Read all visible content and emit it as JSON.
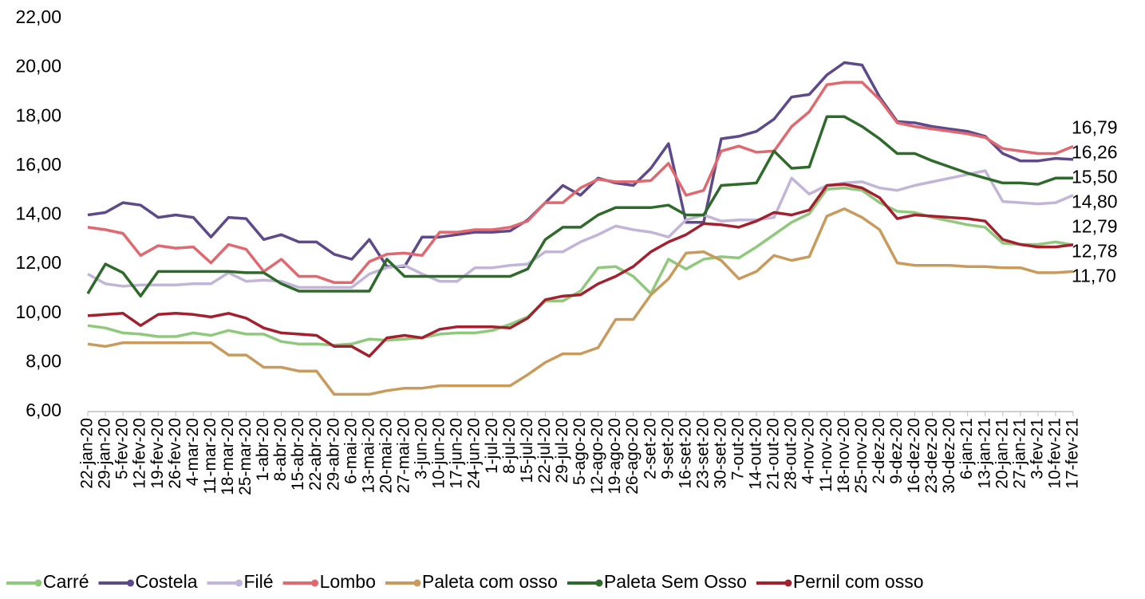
{
  "chart_data": {
    "type": "line",
    "categories": [
      "22-jan-20",
      "29-jan-20",
      "5-fev-20",
      "12-fev-20",
      "19-fev-20",
      "26-fev-20",
      "4-mar-20",
      "11-mar-20",
      "18-mar-20",
      "25-mar-20",
      "1-abr-20",
      "8-abr-20",
      "15-abr-20",
      "22-abr-20",
      "29-abr-20",
      "6-mai-20",
      "13-mai-20",
      "20-mai-20",
      "27-mai-20",
      "3-jun-20",
      "10-jun-20",
      "17-jun-20",
      "24-jun-20",
      "1-jul-20",
      "8-jul-20",
      "15-jul-20",
      "22-jul-20",
      "29-jul-20",
      "5-ago-20",
      "12-ago-20",
      "19-ago-20",
      "26-ago-20",
      "2-set-20",
      "9-set-20",
      "16-set-20",
      "23-set-20",
      "30-set-20",
      "7-out-20",
      "14-out-20",
      "21-out-20",
      "28-out-20",
      "4-nov-20",
      "11-nov-20",
      "18-nov-20",
      "25-nov-20",
      "2-dez-20",
      "9-dez-20",
      "16-dez-20",
      "23-dez-20",
      "30-dez-20",
      "6-jan-21",
      "13-jan-21",
      "20-jan-21",
      "27-jan-21",
      "3-fev-21",
      "10-fev-21",
      "17-fev-21"
    ],
    "series": [
      {
        "name": "Carré",
        "color": "#8fc97c",
        "end_label": "12,78",
        "values": [
          9.5,
          9.4,
          9.2,
          9.15,
          9.05,
          9.05,
          9.2,
          9.1,
          9.3,
          9.15,
          9.15,
          8.85,
          8.75,
          8.75,
          8.7,
          8.75,
          8.95,
          8.9,
          8.95,
          9.0,
          9.15,
          9.2,
          9.2,
          9.3,
          9.55,
          9.85,
          10.5,
          10.5,
          10.9,
          11.85,
          11.9,
          11.5,
          10.8,
          12.2,
          11.8,
          12.2,
          12.3,
          12.25,
          12.7,
          13.2,
          13.7,
          14.05,
          15.05,
          15.1,
          15.0,
          14.5,
          14.15,
          14.1,
          13.9,
          13.75,
          13.6,
          13.5,
          12.85,
          12.8,
          12.8,
          12.9,
          12.78
        ]
      },
      {
        "name": "Costela",
        "color": "#5e4a8b",
        "end_label": "16,26",
        "values": [
          14.0,
          14.1,
          14.5,
          14.4,
          13.9,
          14.0,
          13.9,
          13.1,
          13.9,
          13.85,
          13.0,
          13.2,
          12.9,
          12.9,
          12.4,
          12.2,
          13.0,
          11.9,
          11.9,
          13.1,
          13.1,
          13.2,
          13.3,
          13.3,
          13.35,
          13.8,
          14.5,
          15.2,
          14.8,
          15.5,
          15.3,
          15.2,
          15.9,
          16.9,
          13.7,
          13.7,
          17.1,
          17.2,
          17.4,
          17.9,
          18.8,
          18.9,
          19.7,
          20.2,
          20.1,
          18.8,
          17.8,
          17.75,
          17.6,
          17.5,
          17.4,
          17.2,
          16.5,
          16.2,
          16.2,
          16.3,
          16.26
        ]
      },
      {
        "name": "Filé",
        "color": "#c3b5d9",
        "end_label": "14,80",
        "values": [
          11.6,
          11.2,
          11.1,
          11.15,
          11.15,
          11.15,
          11.2,
          11.2,
          11.65,
          11.3,
          11.35,
          11.3,
          11.05,
          11.05,
          11.05,
          11.05,
          11.6,
          11.85,
          11.95,
          11.6,
          11.3,
          11.3,
          11.85,
          11.85,
          11.95,
          12.0,
          12.5,
          12.5,
          12.9,
          13.2,
          13.55,
          13.4,
          13.3,
          13.1,
          13.8,
          14.0,
          13.75,
          13.8,
          13.8,
          13.9,
          15.5,
          14.85,
          15.2,
          15.3,
          15.35,
          15.1,
          15.0,
          15.2,
          15.35,
          15.5,
          15.65,
          15.8,
          14.55,
          14.5,
          14.45,
          14.5,
          14.8
        ]
      },
      {
        "name": "Lombo",
        "color": "#e0686e",
        "end_label": "16,79",
        "values": [
          13.5,
          13.4,
          13.25,
          12.35,
          12.75,
          12.65,
          12.7,
          12.05,
          12.8,
          12.6,
          11.7,
          12.2,
          11.5,
          11.5,
          11.25,
          11.25,
          12.1,
          12.4,
          12.45,
          12.35,
          13.3,
          13.3,
          13.4,
          13.4,
          13.5,
          13.75,
          14.5,
          14.5,
          15.1,
          15.45,
          15.35,
          15.35,
          15.4,
          16.1,
          14.8,
          15.0,
          16.6,
          16.8,
          16.55,
          16.6,
          17.6,
          18.2,
          19.3,
          19.4,
          19.4,
          18.7,
          17.75,
          17.6,
          17.5,
          17.4,
          17.3,
          17.15,
          16.7,
          16.6,
          16.5,
          16.5,
          16.79
        ]
      },
      {
        "name": "Paleta com osso",
        "color": "#c99a5b",
        "end_label": "11,70",
        "values": [
          8.75,
          8.65,
          8.8,
          8.8,
          8.8,
          8.8,
          8.8,
          8.8,
          8.3,
          8.3,
          7.8,
          7.8,
          7.65,
          7.65,
          6.7,
          6.7,
          6.7,
          6.85,
          6.95,
          6.95,
          7.05,
          7.05,
          7.05,
          7.05,
          7.05,
          7.5,
          8.0,
          8.35,
          8.35,
          8.6,
          9.75,
          9.75,
          10.75,
          11.4,
          12.45,
          12.5,
          12.15,
          11.4,
          11.7,
          12.35,
          12.15,
          12.3,
          13.95,
          14.25,
          13.9,
          13.4,
          12.05,
          11.95,
          11.95,
          11.95,
          11.9,
          11.9,
          11.85,
          11.85,
          11.65,
          11.65,
          11.7
        ]
      },
      {
        "name": "Paleta Sem Osso",
        "color": "#2e6b2b",
        "end_label": "15,50",
        "values": [
          10.8,
          12.0,
          11.65,
          10.7,
          11.7,
          11.7,
          11.7,
          11.7,
          11.7,
          11.65,
          11.65,
          11.2,
          10.9,
          10.9,
          10.9,
          10.9,
          10.9,
          12.2,
          11.5,
          11.5,
          11.5,
          11.5,
          11.5,
          11.5,
          11.5,
          11.8,
          13.0,
          13.5,
          13.5,
          14.0,
          14.3,
          14.3,
          14.3,
          14.4,
          14.0,
          14.0,
          15.2,
          15.25,
          15.3,
          16.6,
          15.9,
          15.95,
          18.0,
          18.0,
          17.6,
          17.1,
          16.5,
          16.5,
          16.2,
          15.95,
          15.7,
          15.5,
          15.3,
          15.3,
          15.25,
          15.5,
          15.5
        ]
      },
      {
        "name": "Pernil com osso",
        "color": "#a3202e",
        "end_label": "12,79",
        "values": [
          9.9,
          9.95,
          10.0,
          9.5,
          9.95,
          10.0,
          9.95,
          9.85,
          10.0,
          9.8,
          9.4,
          9.2,
          9.15,
          9.1,
          8.65,
          8.65,
          8.25,
          9.0,
          9.1,
          9.0,
          9.35,
          9.45,
          9.45,
          9.45,
          9.4,
          9.8,
          10.55,
          10.7,
          10.75,
          11.2,
          11.5,
          11.9,
          12.5,
          12.9,
          13.2,
          13.65,
          13.6,
          13.5,
          13.75,
          14.1,
          14.0,
          14.2,
          15.2,
          15.25,
          15.1,
          14.7,
          13.85,
          14.0,
          13.95,
          13.9,
          13.85,
          13.75,
          13.0,
          12.8,
          12.7,
          12.7,
          12.79
        ]
      }
    ],
    "ylim": [
      6,
      22
    ],
    "yticks": [
      {
        "value": 6,
        "label": "6,00"
      },
      {
        "value": 8,
        "label": "8,00"
      },
      {
        "value": 10,
        "label": "10,00"
      },
      {
        "value": 12,
        "label": "12,00"
      },
      {
        "value": 14,
        "label": "14,00"
      },
      {
        "value": 16,
        "label": "16,00"
      },
      {
        "value": 18,
        "label": "18,00"
      },
      {
        "value": 20,
        "label": "20,00"
      },
      {
        "value": 22,
        "label": "22,00"
      }
    ],
    "grid": false,
    "legend": "bottom"
  }
}
